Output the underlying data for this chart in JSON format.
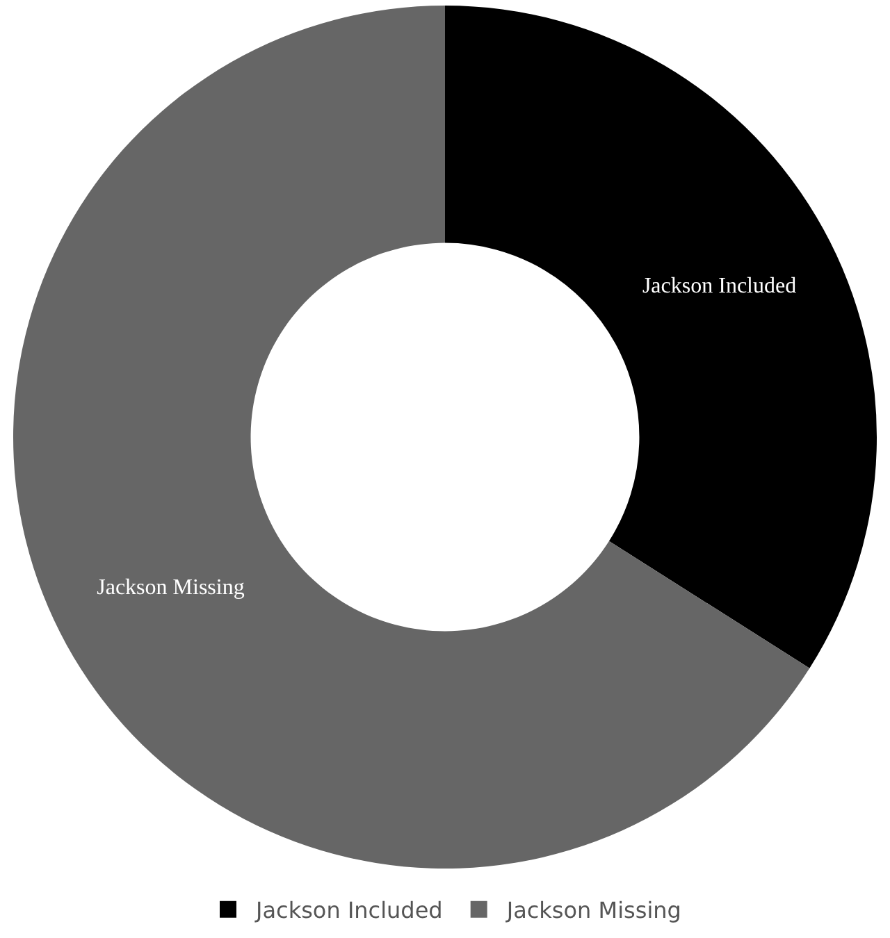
{
  "chart_data": {
    "type": "donut",
    "categories": [
      "Jackson Included",
      "Jackson Missing"
    ],
    "values": [
      34,
      66
    ],
    "colors": [
      "#000000",
      "#666666"
    ],
    "legend": "bottom"
  }
}
